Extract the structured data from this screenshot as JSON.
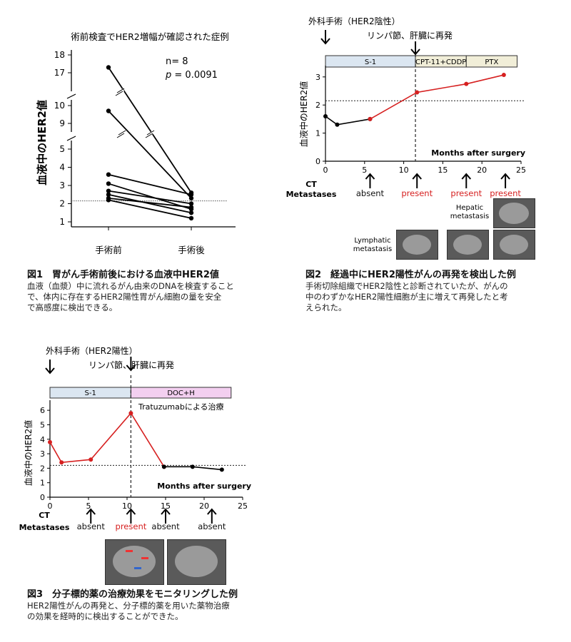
{
  "fig1": {
    "chart_data": {
      "type": "line",
      "title": "術前検査でHER2増幅が確認された症例",
      "ylabel": "血液中のHER2値",
      "categories": [
        "手術前",
        "手術後"
      ],
      "y_ticks": [
        1,
        2,
        3,
        4,
        5,
        9,
        10,
        17,
        18
      ],
      "threshold": 2.15,
      "annotation_n": "n= 8",
      "annotation_p_label": "p",
      "annotation_p_value": "= 0.0091",
      "series": [
        {
          "values": [
            17.3,
            2.6
          ]
        },
        {
          "values": [
            9.7,
            2.3
          ]
        },
        {
          "values": [
            3.6,
            2.5
          ]
        },
        {
          "values": [
            3.1,
            1.7
          ]
        },
        {
          "values": [
            2.7,
            2.0
          ]
        },
        {
          "values": [
            2.5,
            1.5
          ]
        },
        {
          "values": [
            2.3,
            1.8
          ]
        },
        {
          "values": [
            2.2,
            1.2
          ]
        }
      ]
    },
    "caption_title": "図1　胃がん手術前後における血液中HER2値",
    "caption_lines": [
      "血液（血漿）中に流れるがん由来のDNAを検査すること",
      "で、体内に存在するHER2陽性胃がん細胞の量を安全",
      "で高感度に検出できる。"
    ]
  },
  "fig2": {
    "chart_data": {
      "type": "line",
      "xlabel": "Months after surgery",
      "ylabel": "血液中のHER2値",
      "xlim": [
        0,
        25
      ],
      "ylim": [
        0,
        3.3
      ],
      "x_ticks": [
        0,
        5,
        10,
        15,
        20,
        25
      ],
      "y_ticks": [
        0,
        1,
        2,
        3
      ],
      "threshold": 2.15,
      "event_x": 11.5,
      "series": [
        {
          "color": "#000000",
          "points": [
            [
              0,
              1.6
            ],
            [
              1.5,
              1.3
            ],
            [
              5.7,
              1.5
            ]
          ]
        },
        {
          "color": "#d62020",
          "points": [
            [
              5.7,
              1.5
            ],
            [
              11.7,
              2.45
            ],
            [
              18,
              2.75
            ],
            [
              22.8,
              3.07
            ]
          ]
        }
      ],
      "treatments": [
        {
          "label": "S-1",
          "start": 0,
          "end": 11.5,
          "color": "#dbe6f1"
        },
        {
          "label": "CPT-11+CDDP",
          "start": 11.5,
          "end": 18,
          "color": "#f1eed8"
        },
        {
          "label": "PTX",
          "start": 18,
          "end": 24.5,
          "color": "#f1eed8"
        }
      ],
      "ct_header": [
        "CT",
        "Metastases"
      ],
      "ct_findings": [
        {
          "x": 5.7,
          "label": "absent",
          "color": "#111111"
        },
        {
          "x": 11.7,
          "label": "present",
          "color": "#d62020"
        },
        {
          "x": 18,
          "label": "present",
          "color": "#d62020"
        },
        {
          "x": 23,
          "label": "present",
          "color": "#d62020"
        }
      ]
    },
    "surgery_label": "外科手術（HER2陰性）",
    "recurrence_label": "リンパ節、肝臓に再発",
    "hepatic_label": [
      "Hepatic",
      "metastasis"
    ],
    "lymph_label": [
      "Lymphatic",
      "metastasis"
    ],
    "caption_title": "図2　経過中にHER2陽性がんの再発を検出した例",
    "caption_lines": [
      "手術切除組織でHER2陰性と診断されていたが、がんの",
      "中のわずかなHER2陽性細胞が主に増えて再発したと考",
      "えられた。"
    ]
  },
  "fig3": {
    "chart_data": {
      "type": "line",
      "xlabel": "Months after surgery",
      "ylabel": "血液中のHER2値",
      "xlim": [
        0,
        25
      ],
      "ylim": [
        0,
        6.5
      ],
      "x_ticks": [
        0,
        5,
        10,
        15,
        20,
        25
      ],
      "y_ticks": [
        0,
        1,
        2,
        3,
        4,
        5,
        6
      ],
      "threshold": 2.2,
      "event_x": 10.5,
      "series": [
        {
          "color": "#d62020",
          "points": [
            [
              0,
              3.8
            ],
            [
              1.5,
              2.4
            ],
            [
              5.3,
              2.6
            ],
            [
              10.5,
              5.8
            ],
            [
              14.8,
              2.1
            ]
          ]
        },
        {
          "color": "#000000",
          "points": [
            [
              14.8,
              2.1
            ],
            [
              18.5,
              2.1
            ],
            [
              22.3,
              1.9
            ]
          ]
        }
      ],
      "treatments": [
        {
          "label": "S-1",
          "start": 0,
          "end": 10.5,
          "color": "#dbe6f1"
        },
        {
          "label": "DOC+H",
          "start": 10.5,
          "end": 23.5,
          "color": "#f3cff0"
        }
      ],
      "annotation": "Tratuzumabによる治療",
      "ct_header": [
        "CT",
        "Metastases"
      ],
      "ct_findings": [
        {
          "x": 5.3,
          "label": "absent",
          "color": "#111111"
        },
        {
          "x": 10.5,
          "label": "present",
          "color": "#d62020"
        },
        {
          "x": 15,
          "label": "absent",
          "color": "#111111"
        },
        {
          "x": 21,
          "label": "absent",
          "color": "#111111"
        }
      ]
    },
    "surgery_label": "外科手術（HER2陽性）",
    "recurrence_label": "リンパ節、肝臓に再発",
    "caption_title": "図3　分子標的薬の治療効果をモニタリングした例",
    "caption_lines": [
      "HER2陽性がんの再発と、分子標的薬を用いた薬物治療",
      "の効果を経時的に検出することができた。"
    ]
  }
}
